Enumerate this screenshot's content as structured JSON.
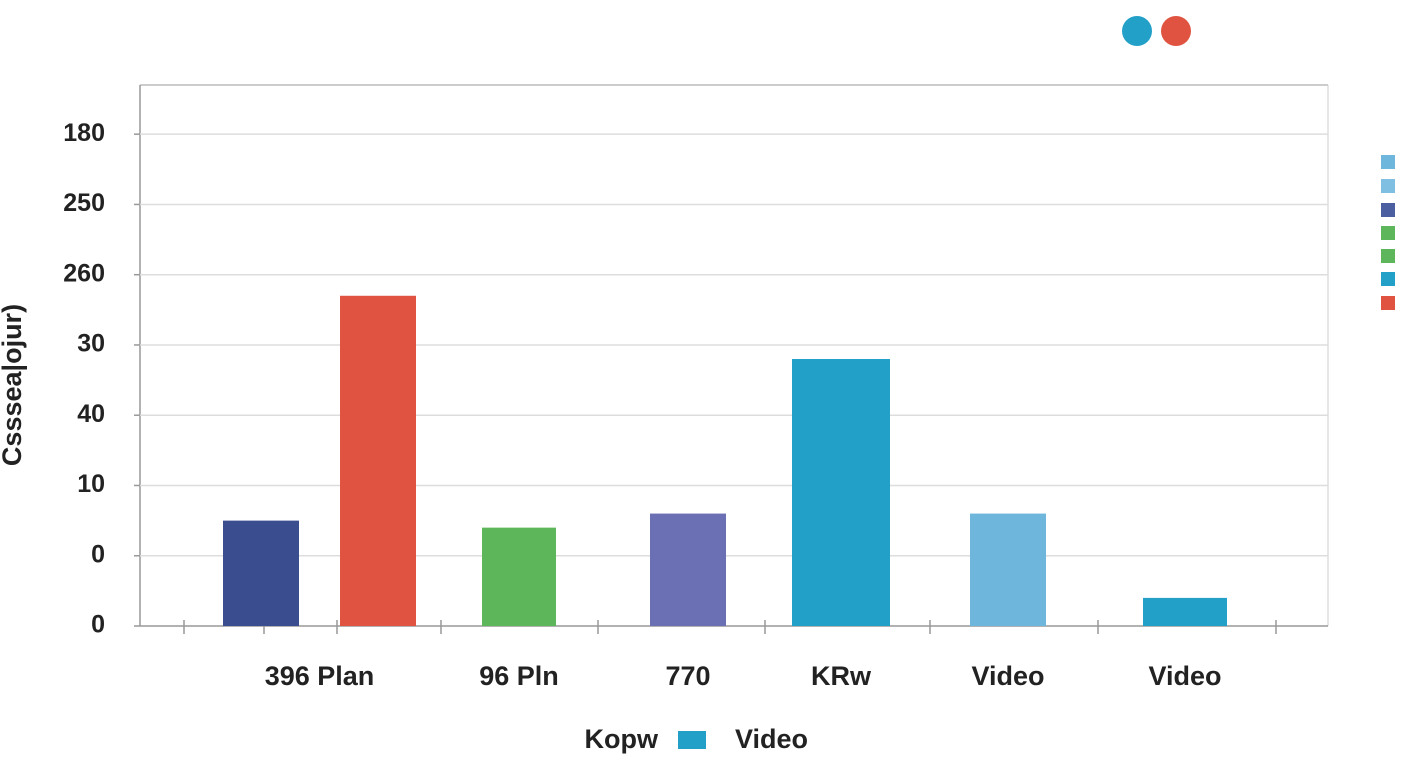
{
  "chart_data": {
    "type": "bar",
    "y_label": "Csssea|ojur)",
    "categories": [
      null,
      "396 Plan",
      "96 Pln",
      "770",
      "KRw",
      "Video",
      "Video"
    ],
    "values": [
      1.5,
      4.7,
      1.4,
      1.6,
      3.8,
      1.6,
      0.4
    ],
    "colors": [
      "#3a4e8f",
      "#e05341",
      "#5db75a",
      "#6b6fb4",
      "#22a0c8",
      "#6fb6dc",
      "#22a0c8"
    ],
    "ylim": [
      0,
      7.7
    ],
    "yticks": [
      {
        "value": 0,
        "label": "0"
      },
      {
        "value": 1,
        "label": "0"
      },
      {
        "value": 2,
        "label": "10"
      },
      {
        "value": 3,
        "label": "40"
      },
      {
        "value": 4,
        "label": "30"
      },
      {
        "value": 5,
        "label": "260"
      },
      {
        "value": 6,
        "label": "250"
      },
      {
        "value": 7,
        "label": "180"
      }
    ],
    "grid": true,
    "legend": {
      "title": "Kopw",
      "entries": [
        {
          "name": "Video",
          "color": "#22a0c8"
        }
      ]
    }
  }
}
